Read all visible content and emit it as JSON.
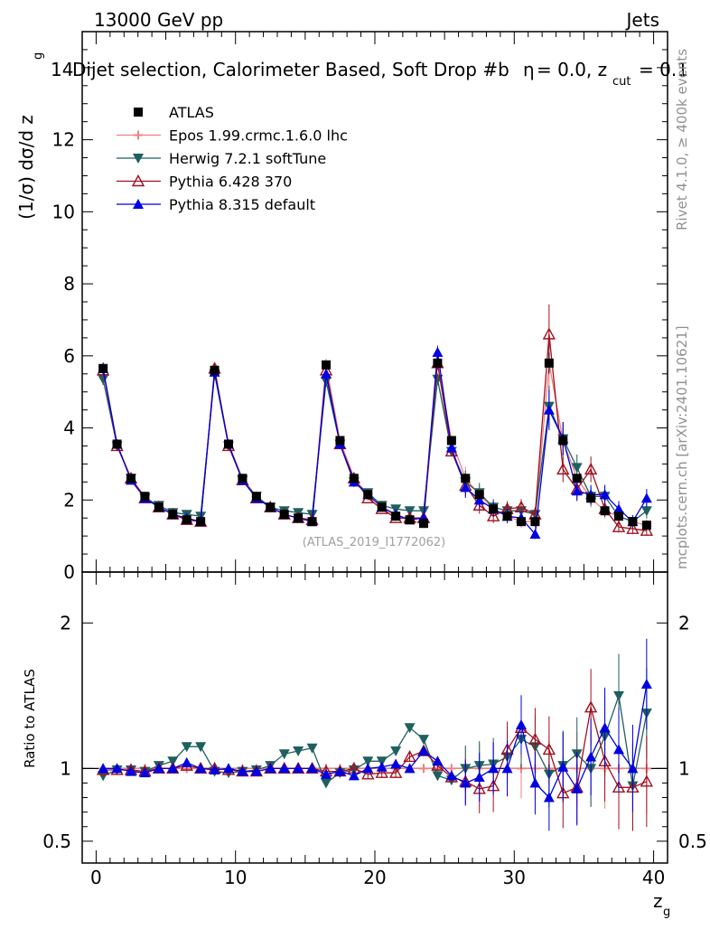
{
  "header": {
    "energy": "13000 GeV pp",
    "category": "Jets",
    "title": "Dijet selection, Calorimeter Based, Soft Drop #b",
    "title_suffix": "= 0.0, z",
    "title_sub": "cut",
    "title_end": "= 0.1",
    "y_axis_number_overlap": "14",
    "beta_symbol": "η"
  },
  "side_labels": {
    "rivet": "Rivet 4.1.0, ≥ 400k events",
    "mcplots": "mcplots.cern.ch [arXiv:2401.10621]"
  },
  "watermark": "(ATLAS_2019_I1772062)",
  "chart_data": [
    {
      "type": "line",
      "panel": "main",
      "ylabel": "(1/σ) dσ/d z",
      "ylabel_sub": "g",
      "xlabel": "z",
      "xlabel_sub": "g",
      "xlim": [
        -1,
        41
      ],
      "ylim": [
        0,
        15
      ],
      "yticks": [
        0,
        2,
        4,
        6,
        8,
        10,
        12
      ],
      "ytick_labels": [
        "0",
        "2",
        "4",
        "6",
        "8",
        "10",
        "12"
      ],
      "legend": [
        {
          "name": "ATLAS",
          "color": "#000000",
          "marker": "square"
        },
        {
          "name": "Epos 1.99.crmc.1.6.0 lhc",
          "color": "#f08080",
          "marker": "cross"
        },
        {
          "name": "Herwig 7.2.1 softTune",
          "color": "#1f5f5f",
          "marker": "triangle-down"
        },
        {
          "name": "Pythia 6.428 370",
          "color": "#a01020",
          "marker": "triangle-open"
        },
        {
          "name": "Pythia 8.315 default",
          "color": "#0000e0",
          "marker": "triangle-up"
        }
      ],
      "x": [
        0.5,
        1.5,
        2.5,
        3.5,
        4.5,
        5.5,
        6.5,
        7.5,
        8.5,
        9.5,
        10.5,
        11.5,
        12.5,
        13.5,
        14.5,
        15.5,
        16.5,
        17.5,
        18.5,
        19.5,
        20.5,
        21.5,
        22.5,
        23.5,
        24.5,
        25.5,
        26.5,
        27.5,
        28.5,
        29.5,
        30.5,
        31.5,
        32.5,
        33.5,
        34.5,
        35.5,
        36.5,
        37.5,
        38.5,
        39.5
      ],
      "series": [
        {
          "name": "ATLAS",
          "values": [
            5.65,
            3.55,
            2.6,
            2.1,
            1.8,
            1.6,
            1.45,
            1.4,
            5.6,
            3.55,
            2.6,
            2.1,
            1.8,
            1.6,
            1.5,
            1.4,
            5.75,
            3.65,
            2.6,
            2.15,
            1.8,
            1.55,
            1.45,
            1.35,
            5.8,
            3.65,
            2.6,
            2.15,
            1.75,
            1.55,
            1.4,
            1.4,
            5.8,
            3.65,
            2.6,
            2.05,
            1.7,
            1.55,
            1.4,
            1.3
          ]
        },
        {
          "name": "Herwig 7.2.1 softTune",
          "values": [
            5.35,
            3.5,
            2.6,
            2.05,
            1.85,
            1.65,
            1.6,
            1.55,
            5.5,
            3.5,
            2.55,
            2.1,
            1.8,
            1.7,
            1.65,
            1.6,
            5.3,
            3.55,
            2.5,
            2.2,
            1.85,
            1.75,
            1.7,
            1.7,
            5.35,
            3.35,
            2.5,
            2.2,
            1.8,
            1.7,
            1.7,
            1.6,
            4.6,
            3.7,
            2.9,
            2.1,
            2.1,
            1.55,
            1.4,
            1.7
          ]
        },
        {
          "name": "Pythia 6.428 370",
          "values": [
            5.6,
            3.5,
            2.6,
            2.05,
            1.8,
            1.6,
            1.45,
            1.4,
            5.65,
            3.5,
            2.55,
            2.05,
            1.8,
            1.6,
            1.5,
            1.45,
            5.6,
            3.55,
            2.6,
            2.05,
            1.75,
            1.5,
            1.5,
            1.5,
            5.8,
            3.35,
            2.4,
            1.85,
            1.55,
            1.75,
            1.8,
            1.6,
            6.6,
            2.85,
            2.3,
            2.85,
            1.75,
            1.25,
            1.2,
            1.15
          ]
        },
        {
          "name": "Pythia 8.315 default",
          "values": [
            5.65,
            3.55,
            2.55,
            2.05,
            1.8,
            1.6,
            1.5,
            1.4,
            5.55,
            3.55,
            2.55,
            2.05,
            1.8,
            1.6,
            1.5,
            1.4,
            5.5,
            3.55,
            2.5,
            2.15,
            1.8,
            1.6,
            1.45,
            1.5,
            6.1,
            3.45,
            2.35,
            2.0,
            1.75,
            1.55,
            1.5,
            1.05,
            4.5,
            3.7,
            2.25,
            2.15,
            2.15,
            1.75,
            1.4,
            2.05
          ]
        },
        {
          "name": "Epos 1.99.crmc.1.6.0 lhc",
          "values": [
            5.65,
            3.55,
            2.6,
            2.1,
            1.8,
            1.6,
            1.45,
            1.4,
            5.6,
            3.55,
            2.6,
            2.1,
            1.8,
            1.6,
            1.5,
            1.4,
            5.75,
            3.65,
            2.6,
            2.15,
            1.8,
            1.55,
            1.45,
            1.35,
            5.8,
            3.65,
            2.6,
            2.15,
            1.75,
            1.55,
            1.4,
            1.4,
            5.8,
            3.65,
            2.6,
            2.05,
            1.7,
            1.55,
            1.4,
            1.3
          ]
        }
      ]
    },
    {
      "type": "line",
      "panel": "ratio",
      "ylabel": "Ratio to ATLAS",
      "xlabel": "z",
      "xlabel_sub": "g",
      "xlim": [
        -1,
        41
      ],
      "ylim": [
        0.35,
        2.35
      ],
      "yticks": [
        0.5,
        1,
        2
      ],
      "ytick_labels": [
        "0.5",
        "1",
        "2"
      ],
      "xticks": [
        0,
        10,
        20,
        30,
        40
      ],
      "xtick_labels": [
        "0",
        "10",
        "20",
        "30",
        "40"
      ],
      "x": [
        0.5,
        1.5,
        2.5,
        3.5,
        4.5,
        5.5,
        6.5,
        7.5,
        8.5,
        9.5,
        10.5,
        11.5,
        12.5,
        13.5,
        14.5,
        15.5,
        16.5,
        17.5,
        18.5,
        19.5,
        20.5,
        21.5,
        22.5,
        23.5,
        24.5,
        25.5,
        26.5,
        27.5,
        28.5,
        29.5,
        30.5,
        31.5,
        32.5,
        33.5,
        34.5,
        35.5,
        36.5,
        37.5,
        38.5,
        39.5
      ],
      "series": [
        {
          "name": "Herwig 7.2.1 softTune",
          "values": [
            0.95,
            0.99,
            0.99,
            0.98,
            1.02,
            1.05,
            1.15,
            1.15,
            0.98,
            0.97,
            0.98,
            0.99,
            1.02,
            1.1,
            1.12,
            1.14,
            0.9,
            0.97,
            0.99,
            1.05,
            1.05,
            1.12,
            1.28,
            1.2,
            0.95,
            0.92,
            1.0,
            1.02,
            1.03,
            1.08,
            1.2,
            1.15,
            0.96,
            1.02,
            1.1,
            1.0,
            1.22,
            1.5,
            0.88,
            1.38
          ]
        },
        {
          "name": "Pythia 6.428 370",
          "values": [
            0.99,
            0.99,
            0.99,
            0.98,
            1.0,
            1.0,
            1.02,
            1.0,
            1.0,
            0.99,
            0.98,
            0.98,
            1.0,
            1.0,
            1.0,
            1.0,
            0.98,
            0.98,
            1.0,
            0.96,
            0.97,
            0.97,
            1.08,
            1.12,
            1.02,
            0.94,
            0.91,
            0.86,
            0.88,
            1.13,
            1.28,
            1.2,
            1.13,
            0.83,
            0.87,
            1.42,
            1.05,
            0.87,
            0.87,
            0.91
          ]
        },
        {
          "name": "Pythia 8.315 default",
          "values": [
            1.0,
            1.0,
            0.98,
            0.97,
            1.0,
            1.0,
            1.04,
            1.0,
            0.99,
            1.0,
            0.98,
            0.98,
            1.0,
            1.0,
            1.0,
            1.0,
            0.96,
            0.98,
            0.95,
            1.0,
            1.01,
            1.03,
            1.0,
            1.12,
            1.05,
            0.95,
            0.9,
            0.94,
            1.0,
            1.0,
            1.3,
            0.9,
            0.8,
            1.01,
            0.86,
            1.08,
            1.28,
            1.13,
            1.0,
            1.58
          ]
        },
        {
          "name": "Epos 1.99.crmc.1.6.0 lhc",
          "values": [
            1,
            1,
            1,
            1,
            1,
            1,
            1,
            1,
            1,
            1,
            1,
            1,
            1,
            1,
            1,
            1,
            1,
            1,
            1,
            1,
            1,
            1,
            1,
            1,
            1,
            1,
            1,
            1,
            1,
            1,
            1,
            1,
            1,
            1,
            1,
            1,
            1,
            1,
            1,
            1
          ]
        }
      ]
    }
  ]
}
